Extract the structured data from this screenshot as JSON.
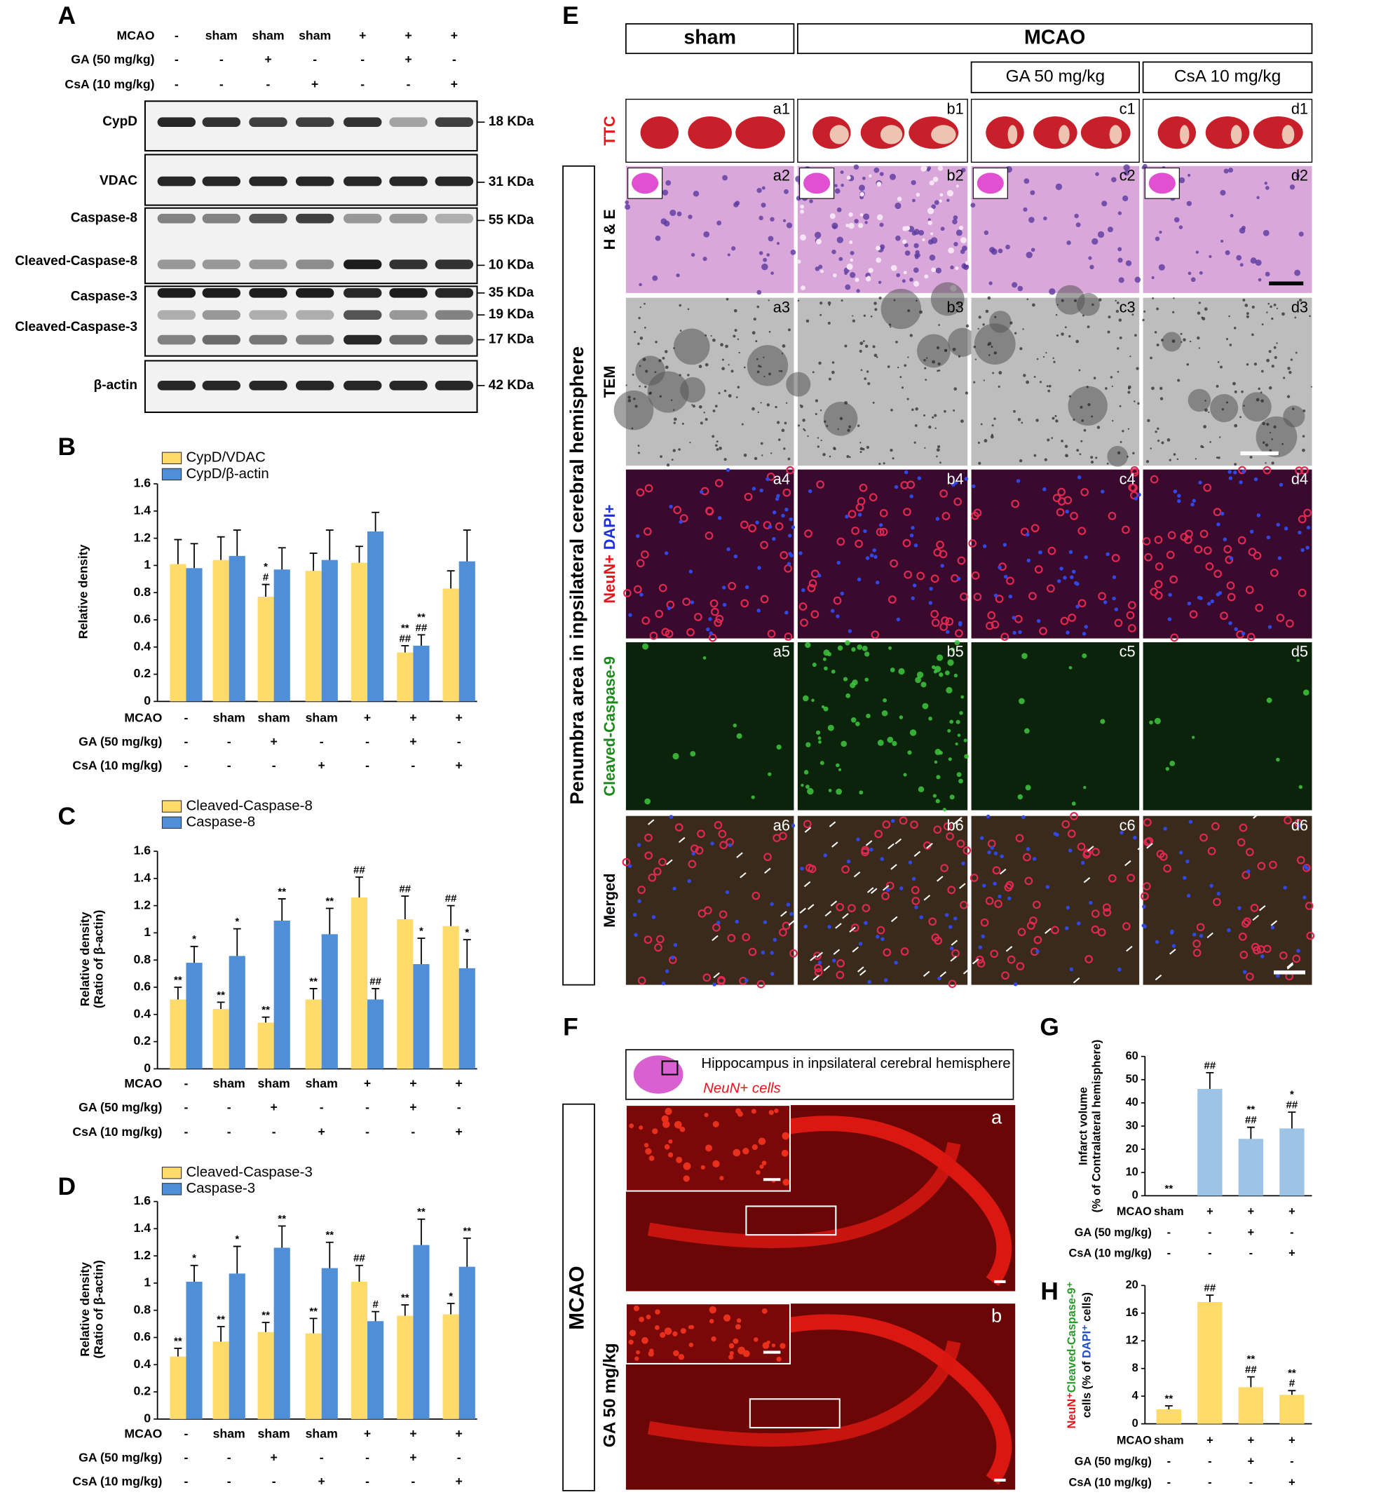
{
  "panel_letters": [
    "A",
    "B",
    "C",
    "D",
    "E",
    "F",
    "G",
    "H"
  ],
  "blot": {
    "conditions": [
      {
        "label": "MCAO",
        "values": [
          "-",
          "sham",
          "sham",
          "sham",
          "+",
          "+",
          "+"
        ]
      },
      {
        "label": "GA (50 mg/kg)",
        "values": [
          "-",
          "-",
          "+",
          "-",
          "-",
          "+",
          "-"
        ]
      },
      {
        "label": "CsA (10 mg/kg)",
        "values": [
          "-",
          "-",
          "-",
          "+",
          "-",
          "-",
          "+"
        ]
      }
    ],
    "proteins": [
      "CypD",
      "VDAC",
      "Caspase-8",
      "Cleaved-Caspase-8",
      "Caspase-3",
      "Cleaved-Caspase-3",
      "β-actin"
    ],
    "sizes": [
      "18 KDa",
      "31 KDa",
      "55 KDa",
      "10 KDa",
      "35 KDa",
      "19 KDa",
      "17 KDa",
      "42 KDa"
    ]
  },
  "chart_data": [
    {
      "type": "bar",
      "ylabel": [
        "Relative density"
      ],
      "ylim": [
        0,
        1.6
      ],
      "yticks": [
        0,
        0.2,
        0.4,
        0.6,
        0.8,
        1,
        1.2,
        1.4,
        1.6
      ],
      "condition_rows": [
        {
          "label": "MCAO",
          "values": [
            "-",
            "sham",
            "sham",
            "sham",
            "+",
            "+",
            "+"
          ]
        },
        {
          "label": "GA (50 mg/kg)",
          "values": [
            "-",
            "-",
            "+",
            "-",
            "-",
            "+",
            "-"
          ]
        },
        {
          "label": "CsA (10 mg/kg)",
          "values": [
            "-",
            "-",
            "-",
            "+",
            "-",
            "-",
            "+"
          ]
        }
      ],
      "series": [
        {
          "name": "CypD/VDAC",
          "color": "#ffdc6a",
          "values": [
            1.01,
            1.04,
            0.77,
            0.96,
            1.02,
            0.36,
            0.83
          ],
          "errors": [
            0.18,
            0.17,
            0.09,
            0.13,
            0.12,
            0.05,
            0.13
          ],
          "annotations": [
            null,
            null,
            [
              "*",
              "#"
            ],
            null,
            null,
            [
              "**",
              "##"
            ],
            null
          ]
        },
        {
          "name": "CypD/β-actin",
          "color": "#4f8fd8",
          "values": [
            0.98,
            1.07,
            0.97,
            1.04,
            1.25,
            0.41,
            1.03
          ],
          "errors": [
            0.18,
            0.19,
            0.16,
            0.22,
            0.14,
            0.08,
            0.23
          ],
          "annotations": [
            null,
            null,
            null,
            null,
            null,
            [
              "**",
              "##"
            ],
            null
          ]
        }
      ]
    },
    {
      "type": "bar",
      "ylabel": [
        "Relative density",
        "(Ratio of β-actin)"
      ],
      "ylim": [
        0,
        1.6
      ],
      "yticks": [
        0,
        0.2,
        0.4,
        0.6,
        0.8,
        1,
        1.2,
        1.4,
        1.6
      ],
      "condition_rows": [
        {
          "label": "MCAO",
          "values": [
            "-",
            "sham",
            "sham",
            "sham",
            "+",
            "+",
            "+"
          ]
        },
        {
          "label": "GA (50 mg/kg)",
          "values": [
            "-",
            "-",
            "+",
            "-",
            "-",
            "+",
            "-"
          ]
        },
        {
          "label": "CsA (10 mg/kg)",
          "values": [
            "-",
            "-",
            "-",
            "+",
            "-",
            "-",
            "+"
          ]
        }
      ],
      "series": [
        {
          "name": "Cleaved-Caspase-8",
          "color": "#ffdc6a",
          "values": [
            0.51,
            0.44,
            0.34,
            0.51,
            1.26,
            1.1,
            1.05
          ],
          "errors": [
            0.09,
            0.05,
            0.04,
            0.08,
            0.15,
            0.17,
            0.15
          ],
          "annotations": [
            [
              "**"
            ],
            [
              "**"
            ],
            [
              "**"
            ],
            [
              "**"
            ],
            [
              "##"
            ],
            [
              "##"
            ],
            [
              "##"
            ]
          ]
        },
        {
          "name": "Caspase-8",
          "color": "#4f8fd8",
          "values": [
            0.78,
            0.83,
            1.09,
            0.99,
            0.51,
            0.77,
            0.74
          ],
          "errors": [
            0.12,
            0.2,
            0.16,
            0.19,
            0.08,
            0.19,
            0.21
          ],
          "annotations": [
            [
              "*"
            ],
            [
              "*"
            ],
            [
              "**"
            ],
            [
              "**"
            ],
            [
              "##"
            ],
            [
              "*"
            ],
            [
              "*"
            ]
          ]
        }
      ]
    },
    {
      "type": "bar",
      "ylabel": [
        "Relative density",
        "(Ratio of β-actin)"
      ],
      "ylim": [
        0,
        1.6
      ],
      "yticks": [
        0,
        0.2,
        0.4,
        0.6,
        0.8,
        1,
        1.2,
        1.4,
        1.6
      ],
      "condition_rows": [
        {
          "label": "MCAO",
          "values": [
            "-",
            "sham",
            "sham",
            "sham",
            "+",
            "+",
            "+"
          ]
        },
        {
          "label": "GA (50 mg/kg)",
          "values": [
            "-",
            "-",
            "+",
            "-",
            "-",
            "+",
            "-"
          ]
        },
        {
          "label": "CsA (10 mg/kg)",
          "values": [
            "-",
            "-",
            "-",
            "+",
            "-",
            "-",
            "+"
          ]
        }
      ],
      "series": [
        {
          "name": "Cleaved-Caspase-3",
          "color": "#ffdc6a",
          "values": [
            0.46,
            0.57,
            0.64,
            0.63,
            1.01,
            0.76,
            0.77
          ],
          "errors": [
            0.06,
            0.11,
            0.07,
            0.11,
            0.12,
            0.08,
            0.08
          ],
          "annotations": [
            [
              "**"
            ],
            [
              "**"
            ],
            [
              "**"
            ],
            [
              "**"
            ],
            [
              "##"
            ],
            [
              "**"
            ],
            [
              "*"
            ]
          ]
        },
        {
          "name": "Caspase-3",
          "color": "#4f8fd8",
          "values": [
            1.01,
            1.07,
            1.26,
            1.11,
            0.72,
            1.28,
            1.12
          ],
          "errors": [
            0.12,
            0.2,
            0.16,
            0.19,
            0.07,
            0.19,
            0.21
          ],
          "annotations": [
            [
              "*"
            ],
            [
              "*"
            ],
            [
              "**"
            ],
            [
              "**"
            ],
            [
              "#"
            ],
            [
              "**"
            ],
            [
              "**"
            ]
          ]
        }
      ]
    },
    {
      "type": "bar",
      "ylabel": [
        "Infarct volume",
        "(% of Contralateral hemisphere)"
      ],
      "ylim": [
        0,
        60
      ],
      "yticks": [
        0,
        10,
        20,
        30,
        40,
        50,
        60
      ],
      "condition_rows": [
        {
          "label": "MCAO",
          "values": [
            "sham",
            "+",
            "+",
            "+"
          ]
        },
        {
          "label": "GA (50 mg/kg)",
          "values": [
            "-",
            "-",
            "+",
            "-"
          ]
        },
        {
          "label": "CsA (10 mg/kg)",
          "values": [
            "-",
            "-",
            "-",
            "+"
          ]
        }
      ],
      "series": [
        {
          "color": "#9dc3e6",
          "values": [
            0,
            46,
            24.5,
            29
          ],
          "errors": [
            null,
            7,
            5,
            7
          ],
          "annotations": [
            [
              "**"
            ],
            [
              "##"
            ],
            [
              "**",
              "##"
            ],
            [
              "*",
              "##"
            ]
          ]
        }
      ]
    },
    {
      "type": "bar",
      "ylabel": [
        [
          {
            "text": "NeuN⁺",
            "color": "#e8141c"
          },
          {
            "text": "Cleaved-Caspase-9⁺",
            "color": "#2a9a2a"
          }
        ],
        [
          {
            "text": "cells (% of "
          },
          {
            "text": "DAPI⁺",
            "color": "#1e50c8"
          },
          {
            "text": " cells)"
          }
        ]
      ],
      "ylim": [
        0,
        20
      ],
      "yticks": [
        0,
        4,
        8,
        12,
        16,
        20
      ],
      "condition_rows": [
        {
          "label": "MCAO",
          "values": [
            "sham",
            "+",
            "+",
            "+"
          ]
        },
        {
          "label": "GA (50 mg/kg)",
          "values": [
            "-",
            "-",
            "+",
            "-"
          ]
        },
        {
          "label": "CsA (10 mg/kg)",
          "values": [
            "-",
            "-",
            "-",
            "+"
          ]
        }
      ],
      "series": [
        {
          "color": "#ffdc6a",
          "values": [
            2.1,
            17.6,
            5.3,
            4.2
          ],
          "errors": [
            0.5,
            1,
            1.5,
            0.6
          ],
          "annotations": [
            [
              "**"
            ],
            [
              "##"
            ],
            [
              "**",
              "##"
            ],
            [
              "**",
              "#"
            ]
          ]
        }
      ]
    }
  ],
  "panel_e": {
    "headers": [
      "sham",
      "MCAO",
      "GA 50 mg/kg",
      "CsA 10 mg/kg"
    ],
    "side_label": "Penumbra area in inpsilateral cerebral hemisphere",
    "row_labels": [
      [
        "TTC"
      ],
      [
        "H & E"
      ],
      [
        "TEM"
      ],
      [
        "NeuN+",
        "DAPI+"
      ],
      [
        "Cleaved-Caspase-9"
      ],
      [
        "Merged"
      ]
    ],
    "panel_labels": [
      [
        "a1",
        "b1",
        "c1",
        "d1"
      ],
      [
        "a2",
        "b2",
        "c2",
        "d2"
      ],
      [
        "a3",
        "b3",
        "c3",
        "d3"
      ],
      [
        "a4",
        "b4",
        "c4",
        "d4"
      ],
      [
        "a5",
        "b5",
        "c5",
        "d5"
      ],
      [
        "a6",
        "b6",
        "c6",
        "d6"
      ]
    ]
  },
  "panel_f": {
    "caption": "Hippocampus in inpsilateral cerebral hemisphere",
    "stain": "NeuN+ cells",
    "side_labels": [
      "MCAO",
      "GA 50 mg/kg"
    ],
    "panel_labels": [
      "a",
      "b"
    ]
  }
}
